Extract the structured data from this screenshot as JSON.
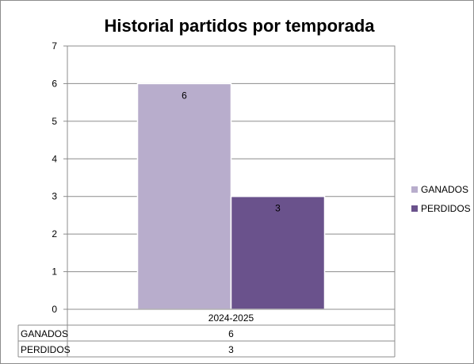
{
  "chart_data": {
    "type": "bar",
    "title": "Historial partidos por temporada",
    "categories": [
      "2024-2025"
    ],
    "series": [
      {
        "name": "GANADOS",
        "values": [
          6
        ],
        "color": "#b8adcc"
      },
      {
        "name": "PERDIDOS",
        "values": [
          3
        ],
        "color": "#6a528c"
      }
    ],
    "ylim": [
      0,
      7
    ],
    "yticks": [
      0,
      1,
      2,
      3,
      4,
      5,
      6,
      7
    ],
    "grid": true,
    "legend": "right",
    "data_table": true
  }
}
